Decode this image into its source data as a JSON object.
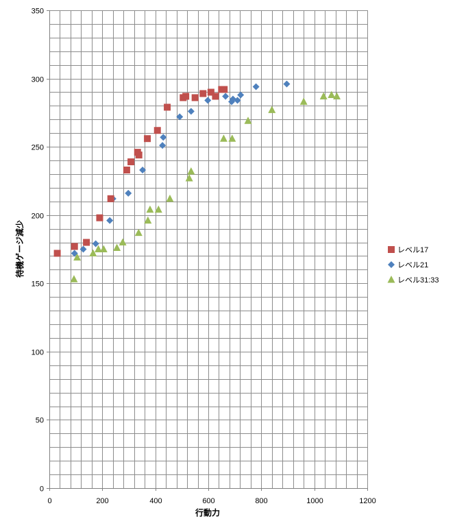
{
  "chart_data": {
    "type": "scatter",
    "title": "",
    "xlabel": "行動力",
    "ylabel": "待機ゲージ減少",
    "xlim": [
      0,
      1200
    ],
    "ylim": [
      0,
      350
    ],
    "x_ticks": [
      0,
      200,
      400,
      600,
      800,
      1000,
      1200
    ],
    "y_ticks": [
      0,
      50,
      100,
      150,
      200,
      250,
      300,
      350
    ],
    "x_minor_step": 40,
    "y_minor_step": 10,
    "grid": true,
    "legend": "right",
    "colors": {
      "grid": "#8c8c8c",
      "axis": "#808080",
      "frame": "#a6a6a6"
    },
    "series": [
      {
        "name": "レベル17",
        "marker": "square",
        "color": "#c0504d",
        "points": [
          [
            30,
            172
          ],
          [
            95,
            177
          ],
          [
            140,
            180
          ],
          [
            190,
            198
          ],
          [
            232,
            212
          ],
          [
            292,
            233
          ],
          [
            308,
            239
          ],
          [
            333,
            246
          ],
          [
            338,
            244
          ],
          [
            370,
            256
          ],
          [
            408,
            262
          ],
          [
            445,
            279
          ],
          [
            505,
            286
          ],
          [
            515,
            287
          ],
          [
            550,
            286
          ],
          [
            580,
            289
          ],
          [
            610,
            290
          ],
          [
            627,
            287
          ],
          [
            650,
            292
          ],
          [
            660,
            292
          ]
        ]
      },
      {
        "name": "レベル21",
        "marker": "diamond",
        "color": "#4f81bd",
        "points": [
          [
            95,
            172
          ],
          [
            128,
            175
          ],
          [
            175,
            179
          ],
          [
            228,
            196
          ],
          [
            240,
            212
          ],
          [
            298,
            216
          ],
          [
            352,
            233
          ],
          [
            427,
            251
          ],
          [
            430,
            257
          ],
          [
            492,
            272
          ],
          [
            535,
            276
          ],
          [
            598,
            284
          ],
          [
            665,
            287
          ],
          [
            688,
            283
          ],
          [
            693,
            285
          ],
          [
            710,
            284
          ],
          [
            722,
            288
          ],
          [
            780,
            294
          ],
          [
            896,
            296
          ]
        ]
      },
      {
        "name": "レベル31:33",
        "marker": "triangle",
        "color": "#9bbb59",
        "points": [
          [
            93,
            153
          ],
          [
            105,
            169
          ],
          [
            165,
            172
          ],
          [
            185,
            175
          ],
          [
            205,
            175
          ],
          [
            255,
            176
          ],
          [
            277,
            180
          ],
          [
            337,
            187
          ],
          [
            372,
            196
          ],
          [
            380,
            204
          ],
          [
            412,
            204
          ],
          [
            455,
            212
          ],
          [
            528,
            227
          ],
          [
            535,
            232
          ],
          [
            658,
            256
          ],
          [
            690,
            256
          ],
          [
            750,
            269
          ],
          [
            840,
            277
          ],
          [
            960,
            283
          ],
          [
            1035,
            287
          ],
          [
            1065,
            288
          ],
          [
            1085,
            287
          ]
        ]
      }
    ]
  }
}
